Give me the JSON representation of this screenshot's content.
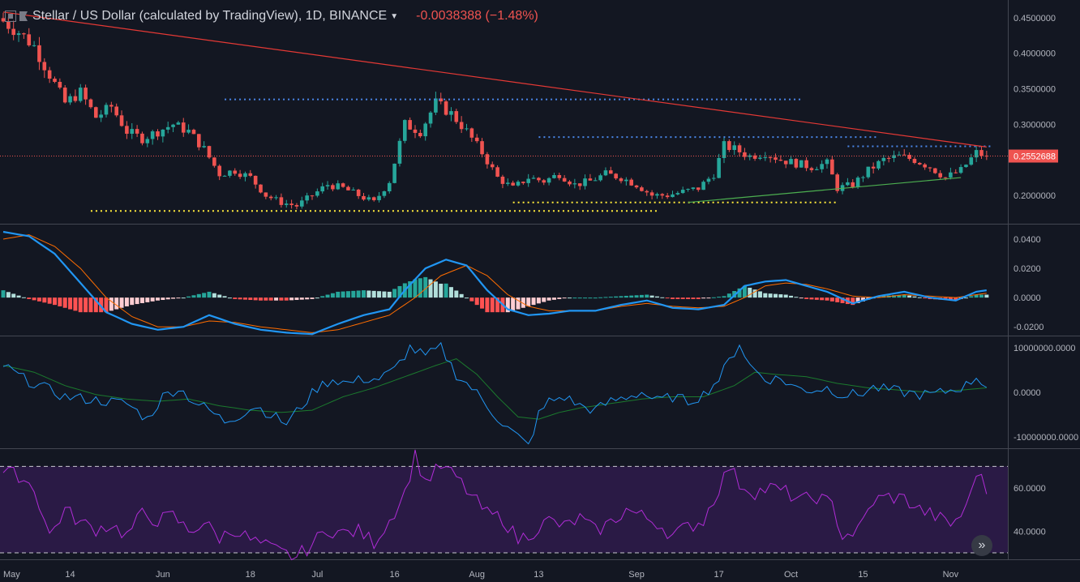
{
  "header": {
    "title": "Stellar / US Dollar (calculated by TradingView), 1D, BINANCE",
    "change": "-0.0038388 (−1.48%)"
  },
  "colors": {
    "background": "#131722",
    "up": "#26a69a",
    "down": "#ef5350",
    "resistance": "#4a86e8",
    "support": "#ffeb3b",
    "trend_down": "#e53935",
    "trend_up": "#4caf50",
    "macd": "#2196f3",
    "signal": "#ff6d00",
    "obv": "#2196f3",
    "obv_ma": "#1b7a2e",
    "rsi": "#b02cd6",
    "rsi_band": "#2a1a45"
  },
  "icons": [
    "symbol-icon",
    "flag-icon",
    "chevron-down-icon",
    "double-chevron-right-icon"
  ],
  "x_axis": {
    "labels": [
      "May",
      "14",
      "Jun",
      "18",
      "Jul",
      "16",
      "Aug",
      "13",
      "Sep",
      "17",
      "Oct",
      "15",
      "Nov"
    ],
    "label_days": [
      0,
      13,
      31,
      48,
      61,
      76,
      92,
      104,
      123,
      139,
      153,
      167,
      184
    ]
  },
  "chart_data": [
    {
      "type": "candlestick",
      "title": "Stellar / US Dollar (calculated by TradingView), 1D, BINANCE",
      "ylim": [
        0.16,
        0.475
      ],
      "y_ticks": [
        "0.4500000",
        "0.4000000",
        "0.3500000",
        "0.3000000",
        "0.2000000"
      ],
      "last_price": "0.2552688",
      "price_anchors": [
        [
          0,
          0.445
        ],
        [
          3,
          0.43
        ],
        [
          6,
          0.41
        ],
        [
          9,
          0.37
        ],
        [
          12,
          0.33
        ],
        [
          15,
          0.345
        ],
        [
          18,
          0.31
        ],
        [
          21,
          0.325
        ],
        [
          24,
          0.29
        ],
        [
          27,
          0.28
        ],
        [
          30,
          0.29
        ],
        [
          33,
          0.3
        ],
        [
          36,
          0.29
        ],
        [
          39,
          0.265
        ],
        [
          42,
          0.23
        ],
        [
          45,
          0.235
        ],
        [
          48,
          0.225
        ],
        [
          51,
          0.2
        ],
        [
          54,
          0.19
        ],
        [
          57,
          0.185
        ],
        [
          60,
          0.2
        ],
        [
          63,
          0.215
        ],
        [
          66,
          0.21
        ],
        [
          69,
          0.2
        ],
        [
          72,
          0.19
        ],
        [
          75,
          0.22
        ],
        [
          78,
          0.3
        ],
        [
          81,
          0.29
        ],
        [
          84,
          0.33
        ],
        [
          87,
          0.315
        ],
        [
          90,
          0.29
        ],
        [
          93,
          0.26
        ],
        [
          96,
          0.225
        ],
        [
          99,
          0.21
        ],
        [
          102,
          0.225
        ],
        [
          105,
          0.22
        ],
        [
          108,
          0.23
        ],
        [
          111,
          0.215
        ],
        [
          114,
          0.22
        ],
        [
          117,
          0.23
        ],
        [
          120,
          0.225
        ],
        [
          123,
          0.215
        ],
        [
          126,
          0.2
        ],
        [
          129,
          0.2
        ],
        [
          132,
          0.205
        ],
        [
          135,
          0.21
        ],
        [
          138,
          0.23
        ],
        [
          140,
          0.27
        ],
        [
          142,
          0.265
        ],
        [
          145,
          0.255
        ],
        [
          148,
          0.26
        ],
        [
          151,
          0.25
        ],
        [
          154,
          0.245
        ],
        [
          157,
          0.24
        ],
        [
          160,
          0.245
        ],
        [
          162,
          0.21
        ],
        [
          165,
          0.215
        ],
        [
          168,
          0.235
        ],
        [
          171,
          0.25
        ],
        [
          174,
          0.255
        ],
        [
          177,
          0.25
        ],
        [
          180,
          0.24
        ],
        [
          183,
          0.225
        ],
        [
          186,
          0.235
        ],
        [
          189,
          0.26
        ],
        [
          191,
          0.2553
        ]
      ],
      "resistance_lines": [
        {
          "price": 0.335,
          "from_day": 43,
          "to_day": 155
        },
        {
          "price": 0.282,
          "from_day": 104,
          "to_day": 170
        },
        {
          "price": 0.269,
          "from_day": 164,
          "to_day": 192
        }
      ],
      "support_lines": [
        {
          "price": 0.178,
          "from_day": 17,
          "to_day": 127
        },
        {
          "price": 0.19,
          "from_day": 99,
          "to_day": 162
        }
      ],
      "trend_lines": [
        {
          "from": [
            0,
            0.458
          ],
          "to": [
            191,
            0.268
          ],
          "kind": "down"
        },
        {
          "from": [
            133,
            0.19
          ],
          "to": [
            186,
            0.225
          ],
          "kind": "up"
        }
      ]
    },
    {
      "type": "macd",
      "ylim": [
        -0.026,
        0.05
      ],
      "y_ticks": [
        "0.0400",
        "0.0200",
        "0.0000",
        "-0.0200"
      ],
      "macd_anchors": [
        [
          0,
          0.045
        ],
        [
          5,
          0.042
        ],
        [
          10,
          0.03
        ],
        [
          15,
          0.01
        ],
        [
          20,
          -0.01
        ],
        [
          25,
          -0.018
        ],
        [
          30,
          -0.022
        ],
        [
          35,
          -0.02
        ],
        [
          40,
          -0.012
        ],
        [
          45,
          -0.018
        ],
        [
          50,
          -0.022
        ],
        [
          55,
          -0.024
        ],
        [
          60,
          -0.025
        ],
        [
          65,
          -0.018
        ],
        [
          70,
          -0.012
        ],
        [
          75,
          -0.008
        ],
        [
          78,
          0.005
        ],
        [
          82,
          0.02
        ],
        [
          86,
          0.026
        ],
        [
          90,
          0.022
        ],
        [
          94,
          0.005
        ],
        [
          98,
          -0.008
        ],
        [
          102,
          -0.012
        ],
        [
          106,
          -0.011
        ],
        [
          110,
          -0.009
        ],
        [
          115,
          -0.009
        ],
        [
          120,
          -0.005
        ],
        [
          125,
          -0.002
        ],
        [
          130,
          -0.007
        ],
        [
          135,
          -0.008
        ],
        [
          140,
          -0.005
        ],
        [
          144,
          0.008
        ],
        [
          148,
          0.011
        ],
        [
          152,
          0.012
        ],
        [
          156,
          0.008
        ],
        [
          160,
          0.004
        ],
        [
          165,
          -0.004
        ],
        [
          170,
          0.001
        ],
        [
          175,
          0.004
        ],
        [
          180,
          0.0
        ],
        [
          185,
          -0.002
        ],
        [
          189,
          0.004
        ],
        [
          191,
          0.005
        ]
      ],
      "signal_anchors": [
        [
          0,
          0.04
        ],
        [
          5,
          0.043
        ],
        [
          10,
          0.035
        ],
        [
          15,
          0.02
        ],
        [
          20,
          0.0
        ],
        [
          25,
          -0.013
        ],
        [
          30,
          -0.02
        ],
        [
          35,
          -0.02
        ],
        [
          40,
          -0.016
        ],
        [
          45,
          -0.017
        ],
        [
          50,
          -0.02
        ],
        [
          55,
          -0.022
        ],
        [
          60,
          -0.024
        ],
        [
          65,
          -0.022
        ],
        [
          70,
          -0.017
        ],
        [
          75,
          -0.012
        ],
        [
          80,
          0.0
        ],
        [
          85,
          0.015
        ],
        [
          90,
          0.022
        ],
        [
          94,
          0.015
        ],
        [
          98,
          0.002
        ],
        [
          102,
          -0.006
        ],
        [
          106,
          -0.009
        ],
        [
          110,
          -0.009
        ],
        [
          115,
          -0.009
        ],
        [
          120,
          -0.006
        ],
        [
          125,
          -0.004
        ],
        [
          130,
          -0.006
        ],
        [
          135,
          -0.007
        ],
        [
          140,
          -0.006
        ],
        [
          144,
          0.0
        ],
        [
          148,
          0.008
        ],
        [
          152,
          0.01
        ],
        [
          156,
          0.009
        ],
        [
          160,
          0.006
        ],
        [
          165,
          0.001
        ],
        [
          170,
          0.0
        ],
        [
          175,
          0.002
        ],
        [
          180,
          0.001
        ],
        [
          185,
          0.0
        ],
        [
          189,
          0.002
        ],
        [
          191,
          0.003
        ]
      ]
    },
    {
      "type": "line",
      "ylim": [
        -12500000,
        12500000
      ],
      "y_ticks": [
        "10000000.0000",
        "0.0000",
        "-10000000.0000"
      ],
      "obv_anchors": [
        [
          0,
          6000000
        ],
        [
          4,
          3000000
        ],
        [
          8,
          1000000
        ],
        [
          12,
          -1000000
        ],
        [
          16,
          -1500000
        ],
        [
          20,
          -2000000
        ],
        [
          24,
          -2500000
        ],
        [
          28,
          -6000000
        ],
        [
          31,
          -1000000
        ],
        [
          34,
          1000000
        ],
        [
          37,
          -2000000
        ],
        [
          40,
          -4000000
        ],
        [
          43,
          -6500000
        ],
        [
          46,
          -5000000
        ],
        [
          49,
          -3000000
        ],
        [
          52,
          -5000000
        ],
        [
          55,
          -7000000
        ],
        [
          58,
          -3000000
        ],
        [
          61,
          1000000
        ],
        [
          64,
          3000000
        ],
        [
          67,
          2000000
        ],
        [
          70,
          3000000
        ],
        [
          73,
          3000000
        ],
        [
          76,
          5000000
        ],
        [
          79,
          10000000
        ],
        [
          82,
          8000000
        ],
        [
          85,
          10000000
        ],
        [
          88,
          4000000
        ],
        [
          91,
          1000000
        ],
        [
          94,
          -3000000
        ],
        [
          97,
          -7000000
        ],
        [
          100,
          -10000000
        ],
        [
          102,
          -12000000
        ],
        [
          104,
          -5000000
        ],
        [
          106,
          -2000000
        ],
        [
          109,
          -1000000
        ],
        [
          112,
          -3000000
        ],
        [
          115,
          -4000000
        ],
        [
          118,
          -2000000
        ],
        [
          121,
          -1000000
        ],
        [
          124,
          0
        ],
        [
          127,
          -2000000
        ],
        [
          130,
          -1000000
        ],
        [
          133,
          -2000000
        ],
        [
          136,
          -500000
        ],
        [
          139,
          3000000
        ],
        [
          141,
          7000000
        ],
        [
          143,
          11000000
        ],
        [
          145,
          6000000
        ],
        [
          148,
          3000000
        ],
        [
          151,
          3000000
        ],
        [
          154,
          1000000
        ],
        [
          157,
          500000
        ],
        [
          160,
          1000000
        ],
        [
          163,
          -500000
        ],
        [
          166,
          -500000
        ],
        [
          169,
          1000000
        ],
        [
          172,
          500000
        ],
        [
          175,
          0
        ],
        [
          178,
          -500000
        ],
        [
          181,
          -500000
        ],
        [
          184,
          500000
        ],
        [
          187,
          1500000
        ],
        [
          189,
          3500000
        ],
        [
          191,
          1500000
        ]
      ],
      "obv_ma_anchors": [
        [
          0,
          6000000
        ],
        [
          6,
          4500000
        ],
        [
          12,
          1500000
        ],
        [
          18,
          -500000
        ],
        [
          24,
          -1500000
        ],
        [
          30,
          -2000000
        ],
        [
          36,
          -1500000
        ],
        [
          42,
          -3000000
        ],
        [
          48,
          -4000000
        ],
        [
          54,
          -4500000
        ],
        [
          60,
          -4000000
        ],
        [
          66,
          -1000000
        ],
        [
          72,
          1000000
        ],
        [
          78,
          3500000
        ],
        [
          84,
          6000000
        ],
        [
          88,
          7500000
        ],
        [
          92,
          4000000
        ],
        [
          96,
          -1000000
        ],
        [
          100,
          -5500000
        ],
        [
          104,
          -6000000
        ],
        [
          108,
          -4500000
        ],
        [
          112,
          -3500000
        ],
        [
          118,
          -2500000
        ],
        [
          124,
          -1500000
        ],
        [
          130,
          -1000000
        ],
        [
          136,
          -1000000
        ],
        [
          142,
          1500000
        ],
        [
          146,
          4500000
        ],
        [
          150,
          4000000
        ],
        [
          156,
          3500000
        ],
        [
          162,
          2000000
        ],
        [
          168,
          1000000
        ],
        [
          174,
          500000
        ],
        [
          180,
          0
        ],
        [
          186,
          500000
        ],
        [
          191,
          1000000
        ]
      ]
    },
    {
      "type": "line",
      "ylim": [
        27,
        78
      ],
      "y_ticks": [
        "60.0000",
        "40.0000"
      ],
      "bands": [
        70,
        30
      ],
      "rsi_anchors": [
        [
          0,
          67
        ],
        [
          3,
          66
        ],
        [
          6,
          60
        ],
        [
          9,
          38
        ],
        [
          12,
          50
        ],
        [
          15,
          44
        ],
        [
          18,
          41
        ],
        [
          21,
          43
        ],
        [
          24,
          38
        ],
        [
          27,
          48
        ],
        [
          30,
          45
        ],
        [
          33,
          47
        ],
        [
          36,
          40
        ],
        [
          39,
          44
        ],
        [
          42,
          37
        ],
        [
          45,
          41
        ],
        [
          48,
          36
        ],
        [
          51,
          33
        ],
        [
          54,
          30
        ],
        [
          57,
          28
        ],
        [
          60,
          34
        ],
        [
          63,
          41
        ],
        [
          66,
          39
        ],
        [
          69,
          40
        ],
        [
          72,
          35
        ],
        [
          75,
          45
        ],
        [
          78,
          58
        ],
        [
          80,
          75
        ],
        [
          82,
          63
        ],
        [
          85,
          70
        ],
        [
          88,
          65
        ],
        [
          91,
          56
        ],
        [
          94,
          48
        ],
        [
          97,
          46
        ],
        [
          100,
          36
        ],
        [
          103,
          40
        ],
        [
          106,
          45
        ],
        [
          109,
          42
        ],
        [
          112,
          46
        ],
        [
          115,
          40
        ],
        [
          118,
          44
        ],
        [
          121,
          50
        ],
        [
          124,
          47
        ],
        [
          127,
          44
        ],
        [
          130,
          38
        ],
        [
          133,
          42
        ],
        [
          136,
          45
        ],
        [
          139,
          60
        ],
        [
          141,
          70
        ],
        [
          143,
          62
        ],
        [
          146,
          58
        ],
        [
          149,
          60
        ],
        [
          152,
          58
        ],
        [
          155,
          54
        ],
        [
          158,
          56
        ],
        [
          161,
          52
        ],
        [
          163,
          38
        ],
        [
          166,
          40
        ],
        [
          169,
          54
        ],
        [
          172,
          56
        ],
        [
          175,
          55
        ],
        [
          178,
          50
        ],
        [
          181,
          47
        ],
        [
          184,
          43
        ],
        [
          187,
          50
        ],
        [
          189,
          68
        ],
        [
          191,
          59
        ]
      ]
    }
  ]
}
